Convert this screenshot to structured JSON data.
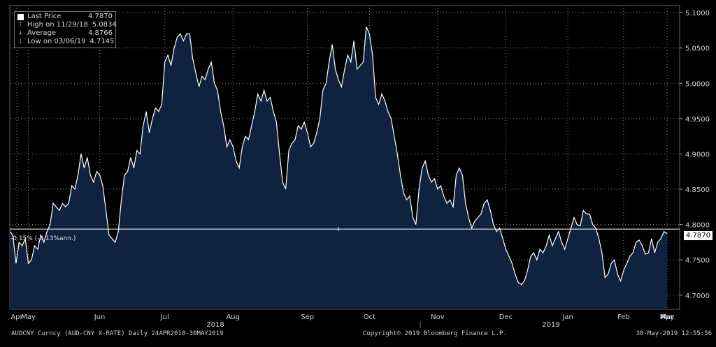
{
  "chart_data": {
    "type": "area",
    "title": "",
    "ticker": "AUDCNY Curncy (AUD-CNY X-RATE)",
    "range_text": "Daily 24APR2018-30MAY2019",
    "y_ticks": [
      "5.1000",
      "5.0500",
      "5.0000",
      "4.9500",
      "4.9000",
      "4.8500",
      "4.8000",
      "4.7500",
      "4.7000"
    ],
    "ylim": [
      4.68,
      5.11
    ],
    "x_month_labels": [
      "Apr",
      "May",
      "Jun",
      "Jul",
      "Aug",
      "Sep",
      "Oct",
      "Nov",
      "Dec",
      "Jan",
      "Feb",
      "Mar",
      "Apr",
      "May"
    ],
    "x_year_labels": [
      "2018",
      "2019"
    ],
    "legend": {
      "last_price_label": "Last Price",
      "last_price_value": "4.7870",
      "high_label": "High on 11/29/18",
      "high_value": "5.0834",
      "average_label": "Average",
      "average_value": "4.8766",
      "low_label": "Low on 03/06/19",
      "low_value": "4.7145"
    },
    "last_value_tag": "4.7870",
    "change_label": "-0.15% (-0.13%ann.)",
    "reference_line_value": 4.7935,
    "grid": true,
    "colors": {
      "line": "#ffffff",
      "fill": "#0f2340",
      "grid": "#8a8a8a"
    },
    "series": [
      {
        "values": [
          4.79,
          4.785,
          4.745,
          4.775,
          4.77,
          4.78,
          4.745,
          4.75,
          4.77,
          4.765,
          4.785,
          4.775,
          4.79,
          4.8,
          4.83,
          4.825,
          4.82,
          4.83,
          4.825,
          4.83,
          4.855,
          4.85,
          4.87,
          4.9,
          4.88,
          4.895,
          4.87,
          4.86,
          4.875,
          4.87,
          4.855,
          4.82,
          4.785,
          4.78,
          4.775,
          4.79,
          4.835,
          4.87,
          4.875,
          4.895,
          4.88,
          4.905,
          4.9,
          4.94,
          4.96,
          4.93,
          4.95,
          4.965,
          4.96,
          4.97,
          5.03,
          5.04,
          5.025,
          5.05,
          5.065,
          5.07,
          5.06,
          5.07,
          5.07,
          5.035,
          5.015,
          4.995,
          5.01,
          5.005,
          5.02,
          5.03,
          5.0,
          4.99,
          4.96,
          4.94,
          4.91,
          4.92,
          4.91,
          4.89,
          4.88,
          4.91,
          4.925,
          4.92,
          4.94,
          4.96,
          4.985,
          4.975,
          4.99,
          4.975,
          4.98,
          4.96,
          4.945,
          4.9,
          4.86,
          4.85,
          4.905,
          4.915,
          4.92,
          4.94,
          4.935,
          4.945,
          4.93,
          4.91,
          4.915,
          4.93,
          4.95,
          4.99,
          5.0,
          5.03,
          5.055,
          5.02,
          5.005,
          4.995,
          5.02,
          5.04,
          5.03,
          5.06,
          5.02,
          5.025,
          5.03,
          5.08,
          5.07,
          5.04,
          4.98,
          4.97,
          4.985,
          4.975,
          4.96,
          4.95,
          4.925,
          4.9,
          4.87,
          4.845,
          4.835,
          4.84,
          4.81,
          4.8,
          4.85,
          4.88,
          4.89,
          4.87,
          4.86,
          4.865,
          4.85,
          4.855,
          4.84,
          4.83,
          4.835,
          4.825,
          4.87,
          4.88,
          4.87,
          4.83,
          4.81,
          4.795,
          4.805,
          4.81,
          4.815,
          4.83,
          4.835,
          4.82,
          4.8,
          4.79,
          4.795,
          4.78,
          4.765,
          4.755,
          4.745,
          4.73,
          4.718,
          4.715,
          4.72,
          4.735,
          4.755,
          4.76,
          4.75,
          4.765,
          4.76,
          4.77,
          4.785,
          4.77,
          4.78,
          4.79,
          4.775,
          4.765,
          4.78,
          4.795,
          4.81,
          4.8,
          4.798,
          4.82,
          4.815,
          4.815,
          4.8,
          4.795,
          4.78,
          4.76,
          4.725,
          4.73,
          4.745,
          4.75,
          4.73,
          4.72,
          4.735,
          4.745,
          4.755,
          4.76,
          4.775,
          4.778,
          4.77,
          4.758,
          4.76,
          4.78,
          4.76,
          4.775,
          4.78,
          4.79,
          4.787
        ]
      }
    ]
  },
  "footer": {
    "left": "AUDCNY Curncy (AUD-CNY X-RATE)  Daily 24APR2018-30MAY2019",
    "center": "Copyright© 2019 Bloomberg Finance L.P.",
    "right": "30-May-2019 12:55:56"
  }
}
